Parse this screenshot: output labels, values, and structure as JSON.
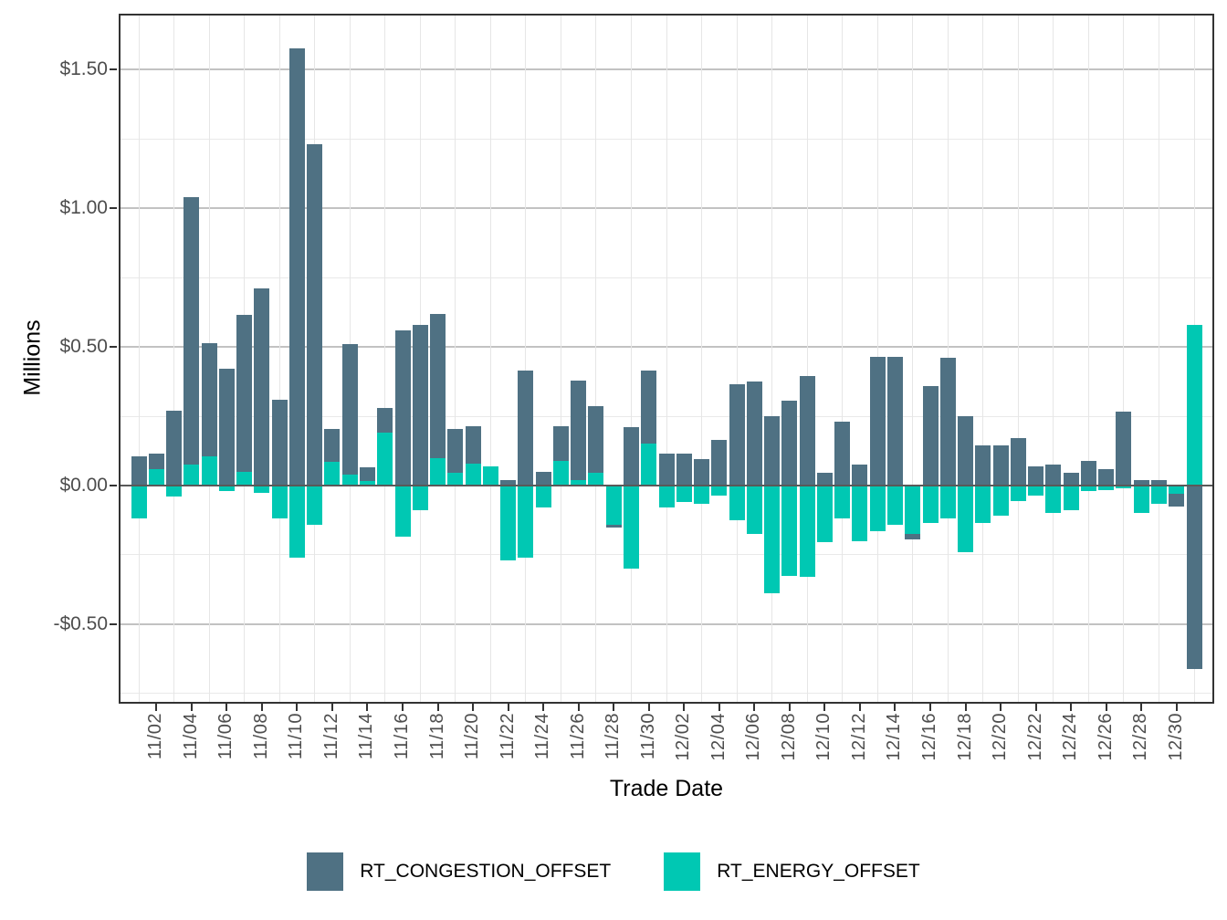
{
  "figure": {
    "y_axis_title": "Millions",
    "x_axis_title": "Trade Date"
  },
  "chart_data": {
    "type": "bar",
    "stacked": true,
    "title": "",
    "xlabel": "Trade Date",
    "ylabel": "Millions",
    "grid": true,
    "legend_position": "bottom",
    "ylim": [
      -0.78,
      1.695
    ],
    "y_major_ticks": [
      {
        "value": 1.5,
        "label": "$1.50"
      },
      {
        "value": 1.0,
        "label": "$1.00"
      },
      {
        "value": 0.5,
        "label": "$0.50"
      },
      {
        "value": 0.0,
        "label": "$0.00"
      },
      {
        "value": -0.5,
        "label": "-$0.50"
      }
    ],
    "y_minor_ticks": [
      1.25,
      0.75,
      0.25,
      -0.25,
      -0.75
    ],
    "x_tick_start_index": 1,
    "x_tick_every": 2,
    "x": [
      "11/01",
      "11/02",
      "11/03",
      "11/04",
      "11/05",
      "11/06",
      "11/07",
      "11/08",
      "11/09",
      "11/10",
      "11/11",
      "11/12",
      "11/13",
      "11/14",
      "11/15",
      "11/16",
      "11/17",
      "11/18",
      "11/19",
      "11/20",
      "11/21",
      "11/22",
      "11/23",
      "11/24",
      "11/25",
      "11/26",
      "11/27",
      "11/28",
      "11/29",
      "11/30",
      "12/01",
      "12/02",
      "12/03",
      "12/04",
      "12/05",
      "12/06",
      "12/07",
      "12/08",
      "12/09",
      "12/10",
      "12/11",
      "12/12",
      "12/13",
      "12/14",
      "12/15",
      "12/16",
      "12/17",
      "12/18",
      "12/19",
      "12/20",
      "12/21",
      "12/22",
      "12/23",
      "12/24",
      "12/25",
      "12/26",
      "12/27",
      "12/28",
      "12/29",
      "12/30",
      "12/31"
    ],
    "series": [
      {
        "name": "RT_CONGESTION_OFFSET",
        "color": "#4f7183",
        "values": [
          0.105,
          0.055,
          0.27,
          0.965,
          0.41,
          0.42,
          0.565,
          0.71,
          0.31,
          1.575,
          1.23,
          0.12,
          0.47,
          0.05,
          0.09,
          0.56,
          0.58,
          0.52,
          0.16,
          0.135,
          0.0,
          0.02,
          0.415,
          0.05,
          0.125,
          0.36,
          0.24,
          -0.01,
          0.21,
          0.265,
          0.115,
          0.115,
          0.095,
          0.165,
          0.365,
          0.375,
          0.25,
          0.305,
          0.395,
          0.045,
          0.23,
          0.075,
          0.465,
          0.465,
          -0.02,
          0.36,
          0.46,
          0.25,
          0.145,
          0.145,
          0.17,
          0.07,
          0.075,
          0.045,
          0.09,
          0.06,
          0.265,
          0.02,
          0.02,
          -0.045,
          -0.66
        ]
      },
      {
        "name": "RT_ENERGY_OFFSET",
        "color": "#00c8b3",
        "values": [
          -0.12,
          0.06,
          -0.04,
          0.075,
          0.105,
          -0.02,
          0.05,
          -0.025,
          -0.12,
          -0.26,
          -0.14,
          0.085,
          0.04,
          0.015,
          0.19,
          -0.185,
          -0.09,
          0.1,
          0.045,
          0.08,
          0.07,
          -0.27,
          -0.26,
          -0.08,
          0.09,
          0.02,
          0.045,
          -0.14,
          -0.3,
          0.15,
          -0.08,
          -0.06,
          -0.065,
          -0.035,
          -0.125,
          -0.175,
          -0.39,
          -0.325,
          -0.33,
          -0.205,
          -0.12,
          -0.2,
          -0.165,
          -0.14,
          -0.175,
          -0.135,
          -0.12,
          -0.24,
          -0.135,
          -0.11,
          -0.055,
          -0.035,
          -0.1,
          -0.09,
          -0.02,
          -0.015,
          -0.01,
          -0.1,
          -0.065,
          -0.03,
          0.58
        ]
      }
    ],
    "grid_colors": {
      "major_h": "#c2c2c2",
      "minor_h": "#e9e9e9",
      "minor_v": "#e6e6e6"
    }
  },
  "legend": {
    "items": [
      {
        "label": "RT_CONGESTION_OFFSET",
        "color": "#4f7183"
      },
      {
        "label": "RT_ENERGY_OFFSET",
        "color": "#00c8b3"
      }
    ]
  }
}
